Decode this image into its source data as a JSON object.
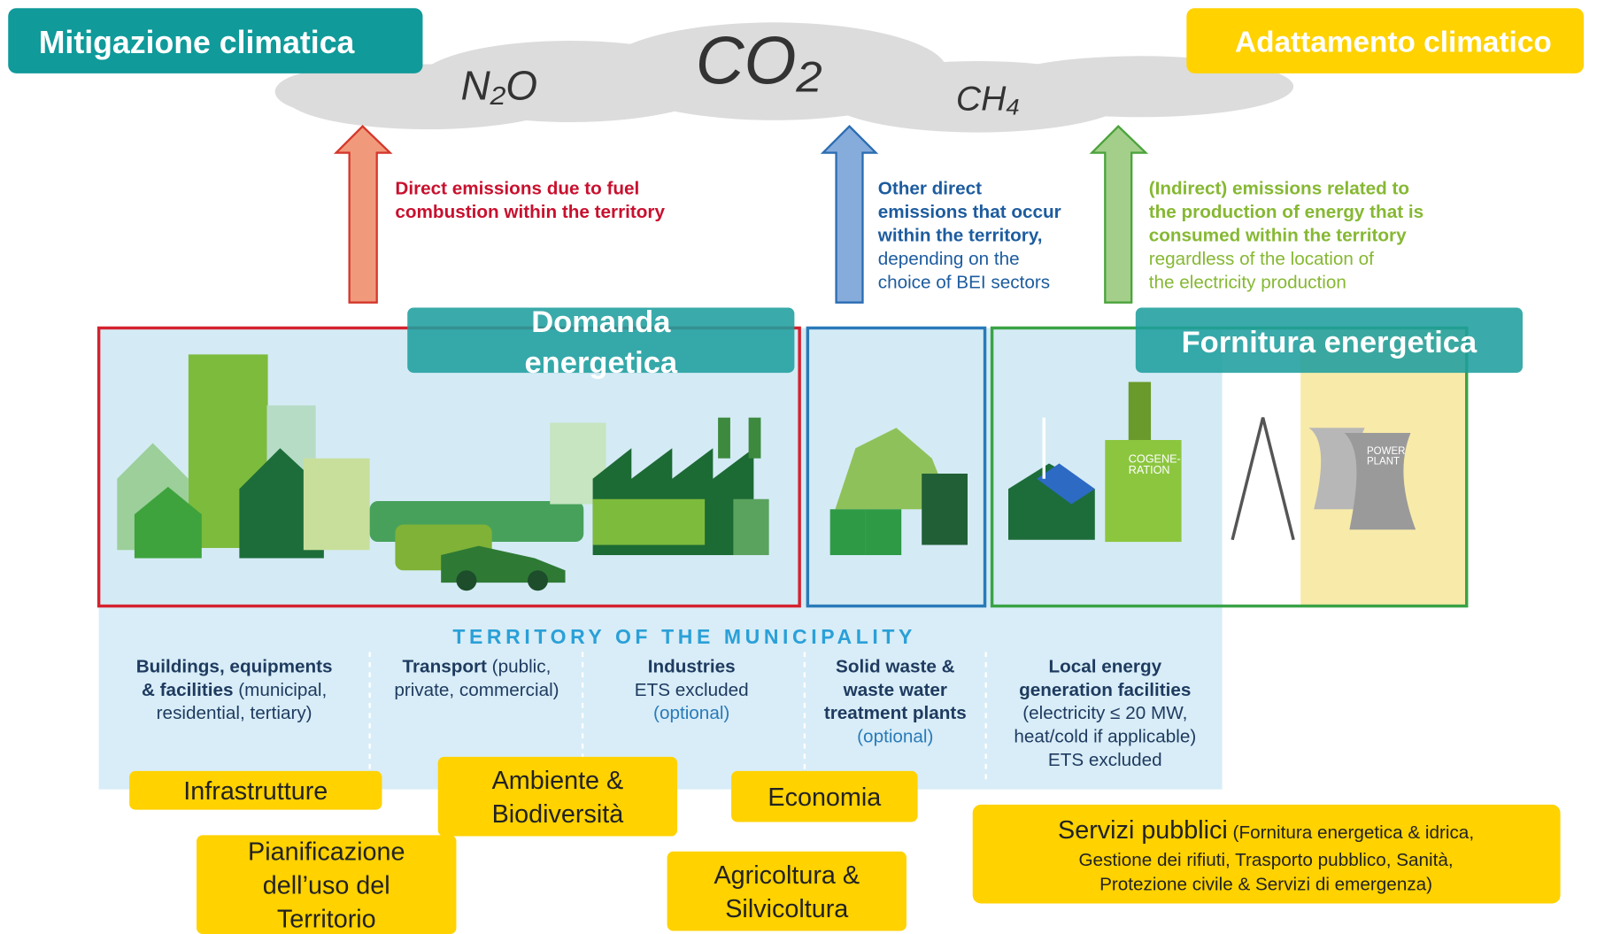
{
  "header": {
    "mitigation": "Mitigazione climatica",
    "adaptation": "Adattamento climatico"
  },
  "gases": [
    "N₂O",
    "CO₂",
    "CH₄"
  ],
  "arrows": [
    {
      "lines": [
        [
          {
            "bold": "Direct emissions due to fuel"
          }
        ],
        [
          {
            "bold": "combustion within the territory"
          }
        ]
      ]
    },
    {
      "lines": [
        [
          {
            "bold": "Other direct"
          }
        ],
        [
          {
            "bold": "emissions that occur"
          }
        ],
        [
          {
            "bold": "within the territory,"
          }
        ],
        [
          {
            "text": "depending on the"
          }
        ],
        [
          {
            "text": "choice of BEI sectors"
          }
        ]
      ]
    },
    {
      "lines": [
        [
          {
            "bold": "(Indirect) emissions related to"
          }
        ],
        [
          {
            "bold": "the production of energy that is"
          }
        ],
        [
          {
            "bold": "consumed within the territory"
          }
        ],
        [
          {
            "text": "regardless of the location of"
          }
        ],
        [
          {
            "text": "the electricity production"
          }
        ]
      ]
    }
  ],
  "boxes": {
    "demand": [
      "Domanda",
      "energetica"
    ],
    "supply": "Fornitura energetica",
    "cogeneration": [
      "COGENE-",
      "RATION"
    ],
    "power_plant": [
      "POWER",
      "PLANT"
    ]
  },
  "territory": "TERRITORY OF THE MUNICIPALITY",
  "sectors": [
    {
      "lines": [
        [
          {
            "bold": "Buildings, equipments"
          }
        ],
        [
          {
            "bold": "& facilities"
          },
          {
            "text": " (municipal,"
          }
        ],
        [
          {
            "text": "residential, tertiary)"
          }
        ]
      ]
    },
    {
      "lines": [
        [
          {
            "bold": "Transport"
          },
          {
            "text": " (public,"
          }
        ],
        [
          {
            "text": "private, commercial)"
          }
        ]
      ]
    },
    {
      "lines": [
        [
          {
            "bold": "Industries"
          }
        ],
        [
          {
            "text": "ETS excluded"
          }
        ],
        [
          {
            "note": "(optional)"
          }
        ]
      ]
    },
    {
      "lines": [
        [
          {
            "bold": "Solid waste &"
          }
        ],
        [
          {
            "bold": "waste water"
          }
        ],
        [
          {
            "bold": "treatment plants"
          }
        ],
        [
          {
            "note": "(optional)"
          }
        ]
      ]
    },
    {
      "lines": [
        [
          {
            "bold": "Local energy"
          }
        ],
        [
          {
            "bold": "generation facilities"
          }
        ],
        [
          {
            "text": "(electricity ≤ 20 MW,"
          }
        ],
        [
          {
            "text": "heat/cold if applicable)"
          }
        ],
        [
          {
            "text": "ETS excluded"
          }
        ]
      ]
    }
  ],
  "themes": [
    {
      "lines": [
        "Infrastrutture"
      ]
    },
    {
      "lines": [
        "Ambiente &",
        "Biodiversità"
      ]
    },
    {
      "lines": [
        "Economia"
      ]
    },
    {
      "lines": [
        "Pianificazione",
        "dell’uso del",
        "Territorio"
      ]
    },
    {
      "lines": [
        "Agricoltura &",
        "Silvicoltura"
      ]
    }
  ],
  "services": {
    "title": "Servizi pubblici",
    "lines": [
      " (Fornitura energetica & idrica,",
      "Gestione dei rifiuti, Trasporto pubblico, Sanità,",
      "Protezione civile & Servizi di emergenza)"
    ]
  }
}
